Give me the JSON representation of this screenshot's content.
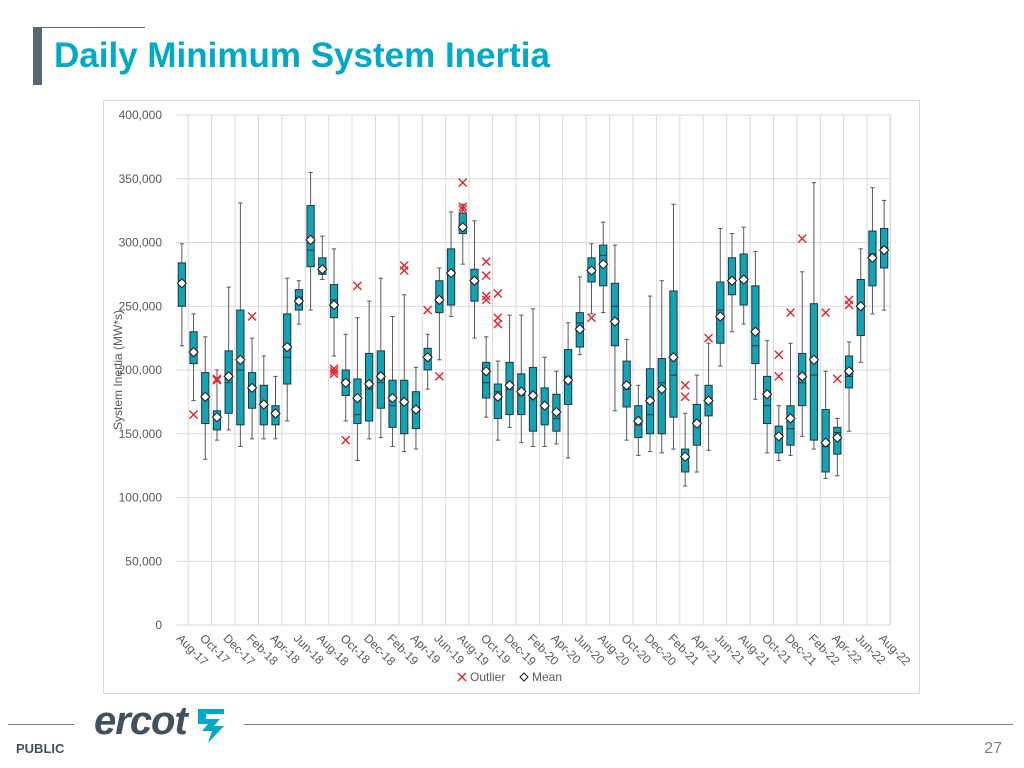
{
  "page": {
    "title": "Daily Minimum System Inertia",
    "classification": "PUBLIC",
    "page_number": "27",
    "logo_text": "ercot"
  },
  "colors": {
    "title": "#00a9c5",
    "box_fill": "#13a3b5",
    "box_stroke": "#1f3740",
    "outlier": "#e0262b",
    "grid": "#d9d9d9",
    "logo_mark": "#00a9c5"
  },
  "chart_data": {
    "type": "box",
    "title": "",
    "ylabel": "System Inertia (MW*s)",
    "xlabel": "",
    "ylim": [
      0,
      400000
    ],
    "yticks": [
      0,
      50000,
      100000,
      150000,
      200000,
      250000,
      300000,
      350000,
      400000
    ],
    "ytick_labels": [
      "0",
      "50,000",
      "100,000",
      "150,000",
      "200,000",
      "250,000",
      "300,000",
      "350,000",
      "400,000"
    ],
    "grid": true,
    "legend": {
      "position": "bottom",
      "entries": [
        "Outlier",
        "Mean"
      ]
    },
    "x_tick_labels": [
      "Aug-17",
      "Oct-17",
      "Dec-17",
      "Feb-18",
      "Apr-18",
      "Jun-18",
      "Aug-18",
      "Oct-18",
      "Dec-18",
      "Feb-19",
      "Apr-19",
      "Jun-19",
      "Aug-19",
      "Oct-19",
      "Dec-19",
      "Feb-20",
      "Apr-20",
      "Jun-20",
      "Aug-20",
      "Oct-20",
      "Dec-20",
      "Feb-21",
      "Apr-21",
      "Jun-21",
      "Aug-21",
      "Oct-21",
      "Dec-21",
      "Feb-22",
      "Apr-22",
      "Jun-22",
      "Aug-22"
    ],
    "series": [
      {
        "month": "Aug-17",
        "min": 219000,
        "q1": 250000,
        "median": 268000,
        "q3": 284000,
        "max": 299000,
        "mean": 268000,
        "outliers": []
      },
      {
        "month": "Sep-17",
        "min": 176000,
        "q1": 205000,
        "median": 215000,
        "q3": 230000,
        "max": 244000,
        "mean": 214000,
        "outliers": [
          165000
        ]
      },
      {
        "month": "Oct-17",
        "min": 130000,
        "q1": 158000,
        "median": 178000,
        "q3": 198000,
        "max": 226000,
        "mean": 179000,
        "outliers": []
      },
      {
        "month": "Nov-17",
        "min": 145000,
        "q1": 153000,
        "median": 162000,
        "q3": 168000,
        "max": 200000,
        "mean": 163000,
        "outliers": [
          192000,
          193000
        ]
      },
      {
        "month": "Dec-17",
        "min": 153000,
        "q1": 166000,
        "median": 190000,
        "q3": 215000,
        "max": 265000,
        "mean": 195000,
        "outliers": []
      },
      {
        "month": "Jan-18",
        "min": 140000,
        "q1": 157000,
        "median": 200000,
        "q3": 247000,
        "max": 331000,
        "mean": 208000,
        "outliers": []
      },
      {
        "month": "Feb-18",
        "min": 146000,
        "q1": 170000,
        "median": 186000,
        "q3": 198000,
        "max": 225000,
        "mean": 186000,
        "outliers": [
          242000
        ]
      },
      {
        "month": "Mar-18",
        "min": 146000,
        "q1": 157000,
        "median": 175000,
        "q3": 188000,
        "max": 211000,
        "mean": 173000,
        "outliers": []
      },
      {
        "month": "Apr-18",
        "min": 146000,
        "q1": 157000,
        "median": 165000,
        "q3": 172000,
        "max": 195000,
        "mean": 166000,
        "outliers": []
      },
      {
        "month": "May-18",
        "min": 160000,
        "q1": 189000,
        "median": 210000,
        "q3": 244000,
        "max": 272000,
        "mean": 218000,
        "outliers": []
      },
      {
        "month": "Jun-18",
        "min": 236000,
        "q1": 247000,
        "median": 257000,
        "q3": 263000,
        "max": 270000,
        "mean": 254000,
        "outliers": []
      },
      {
        "month": "Jul-18",
        "min": 247000,
        "q1": 281000,
        "median": 294000,
        "q3": 329000,
        "max": 355000,
        "mean": 302000,
        "outliers": []
      },
      {
        "month": "Aug-18",
        "min": 271000,
        "q1": 275000,
        "median": 279000,
        "q3": 288000,
        "max": 305000,
        "mean": 279000,
        "outliers": []
      },
      {
        "month": "Sep-18",
        "min": 211000,
        "q1": 241000,
        "median": 255000,
        "q3": 267000,
        "max": 295000,
        "mean": 251000,
        "outliers": [
          197000,
          199000,
          201000
        ]
      },
      {
        "month": "Oct-18",
        "min": 160000,
        "q1": 180000,
        "median": 192000,
        "q3": 200000,
        "max": 228000,
        "mean": 190000,
        "outliers": [
          145000
        ]
      },
      {
        "month": "Nov-18",
        "min": 129000,
        "q1": 158000,
        "median": 165000,
        "q3": 193000,
        "max": 241000,
        "mean": 178000,
        "outliers": [
          266000
        ]
      },
      {
        "month": "Dec-18",
        "min": 146000,
        "q1": 160000,
        "median": 185000,
        "q3": 213000,
        "max": 254000,
        "mean": 189000,
        "outliers": []
      },
      {
        "month": "Jan-19",
        "min": 147000,
        "q1": 170000,
        "median": 190000,
        "q3": 215000,
        "max": 272000,
        "mean": 195000,
        "outliers": []
      },
      {
        "month": "Feb-19",
        "min": 140000,
        "q1": 155000,
        "median": 172000,
        "q3": 192000,
        "max": 242000,
        "mean": 178000,
        "outliers": []
      },
      {
        "month": "Mar-19",
        "min": 136000,
        "q1": 150000,
        "median": 176000,
        "q3": 192000,
        "max": 259000,
        "mean": 175000,
        "outliers": [
          278000,
          282000
        ]
      },
      {
        "month": "Apr-19",
        "min": 138000,
        "q1": 154000,
        "median": 170000,
        "q3": 183000,
        "max": 202000,
        "mean": 169000,
        "outliers": []
      },
      {
        "month": "May-19",
        "min": 185000,
        "q1": 200000,
        "median": 209000,
        "q3": 217000,
        "max": 228000,
        "mean": 210000,
        "outliers": [
          247000
        ]
      },
      {
        "month": "Jun-19",
        "min": 208000,
        "q1": 245000,
        "median": 257000,
        "q3": 270000,
        "max": 280000,
        "mean": 255000,
        "outliers": [
          195000
        ]
      },
      {
        "month": "Jul-19",
        "min": 242000,
        "q1": 251000,
        "median": 275000,
        "q3": 295000,
        "max": 324000,
        "mean": 276000,
        "outliers": []
      },
      {
        "month": "Aug-19",
        "min": 283000,
        "q1": 307000,
        "median": 313000,
        "q3": 323000,
        "max": 330000,
        "mean": 312000,
        "outliers": [
          326000,
          328000,
          347000
        ]
      },
      {
        "month": "Sep-19",
        "min": 225000,
        "q1": 254000,
        "median": 270000,
        "q3": 279000,
        "max": 317000,
        "mean": 270000,
        "outliers": []
      },
      {
        "month": "Oct-19",
        "min": 163000,
        "q1": 178000,
        "median": 190000,
        "q3": 206000,
        "max": 226000,
        "mean": 199000,
        "outliers": [
          255000,
          258000,
          274000,
          285000
        ]
      },
      {
        "month": "Nov-19",
        "min": 145000,
        "q1": 162000,
        "median": 183000,
        "q3": 189000,
        "max": 207000,
        "mean": 179000,
        "outliers": [
          236000,
          241000,
          260000
        ]
      },
      {
        "month": "Dec-19",
        "min": 155000,
        "q1": 165000,
        "median": 185000,
        "q3": 206000,
        "max": 243000,
        "mean": 188000,
        "outliers": []
      },
      {
        "month": "Jan-20",
        "min": 143000,
        "q1": 165000,
        "median": 180000,
        "q3": 197000,
        "max": 243000,
        "mean": 183000,
        "outliers": []
      },
      {
        "month": "Feb-20",
        "min": 140000,
        "q1": 152000,
        "median": 178000,
        "q3": 202000,
        "max": 248000,
        "mean": 180000,
        "outliers": []
      },
      {
        "month": "Mar-20",
        "min": 140000,
        "q1": 157000,
        "median": 173000,
        "q3": 186000,
        "max": 210000,
        "mean": 172000,
        "outliers": []
      },
      {
        "month": "Apr-20",
        "min": 142000,
        "q1": 152000,
        "median": 162000,
        "q3": 181000,
        "max": 199000,
        "mean": 167000,
        "outliers": []
      },
      {
        "month": "May-20",
        "min": 131000,
        "q1": 173000,
        "median": 195000,
        "q3": 216000,
        "max": 237000,
        "mean": 192000,
        "outliers": []
      },
      {
        "month": "Jun-20",
        "min": 212000,
        "q1": 218000,
        "median": 237000,
        "q3": 245000,
        "max": 273000,
        "mean": 232000,
        "outliers": []
      },
      {
        "month": "Jul-20",
        "min": 244000,
        "q1": 269000,
        "median": 279000,
        "q3": 288000,
        "max": 299000,
        "mean": 278000,
        "outliers": [
          241000
        ]
      },
      {
        "month": "Aug-20",
        "min": 245000,
        "q1": 266000,
        "median": 290000,
        "q3": 298000,
        "max": 316000,
        "mean": 283000,
        "outliers": []
      },
      {
        "month": "Sep-20",
        "min": 168000,
        "q1": 219000,
        "median": 250000,
        "q3": 268000,
        "max": 298000,
        "mean": 238000,
        "outliers": []
      },
      {
        "month": "Oct-20",
        "min": 145000,
        "q1": 171000,
        "median": 185000,
        "q3": 207000,
        "max": 224000,
        "mean": 188000,
        "outliers": []
      },
      {
        "month": "Nov-20",
        "min": 133000,
        "q1": 147000,
        "median": 157000,
        "q3": 172000,
        "max": 188000,
        "mean": 160000,
        "outliers": []
      },
      {
        "month": "Dec-20",
        "min": 136000,
        "q1": 150000,
        "median": 165000,
        "q3": 201000,
        "max": 258000,
        "mean": 176000,
        "outliers": []
      },
      {
        "month": "Jan-21",
        "min": 135000,
        "q1": 150000,
        "median": 190000,
        "q3": 209000,
        "max": 270000,
        "mean": 185000,
        "outliers": []
      },
      {
        "month": "Feb-21",
        "min": 138000,
        "q1": 163000,
        "median": 196000,
        "q3": 262000,
        "max": 330000,
        "mean": 210000,
        "outliers": []
      },
      {
        "month": "Mar-21",
        "min": 109000,
        "q1": 120000,
        "median": 132000,
        "q3": 138000,
        "max": 166000,
        "mean": 132000,
        "outliers": [
          179000,
          188000
        ]
      },
      {
        "month": "Apr-21",
        "min": 120000,
        "q1": 141000,
        "median": 160000,
        "q3": 173000,
        "max": 196000,
        "mean": 158000,
        "outliers": []
      },
      {
        "month": "May-21",
        "min": 137000,
        "q1": 164000,
        "median": 178000,
        "q3": 188000,
        "max": 221000,
        "mean": 176000,
        "outliers": [
          225000
        ]
      },
      {
        "month": "Jun-21",
        "min": 203000,
        "q1": 221000,
        "median": 247000,
        "q3": 269000,
        "max": 311000,
        "mean": 242000,
        "outliers": []
      },
      {
        "month": "Jul-21",
        "min": 230000,
        "q1": 259000,
        "median": 271000,
        "q3": 288000,
        "max": 307000,
        "mean": 270000,
        "outliers": []
      },
      {
        "month": "Aug-21",
        "min": 236000,
        "q1": 251000,
        "median": 270000,
        "q3": 291000,
        "max": 312000,
        "mean": 271000,
        "outliers": []
      },
      {
        "month": "Sep-21",
        "min": 177000,
        "q1": 205000,
        "median": 219000,
        "q3": 266000,
        "max": 293000,
        "mean": 230000,
        "outliers": []
      },
      {
        "month": "Oct-21",
        "min": 135000,
        "q1": 158000,
        "median": 172000,
        "q3": 195000,
        "max": 223000,
        "mean": 181000,
        "outliers": []
      },
      {
        "month": "Nov-21",
        "min": 129000,
        "q1": 135000,
        "median": 148000,
        "q3": 156000,
        "max": 172000,
        "mean": 148000,
        "outliers": [
          195000,
          212000
        ]
      },
      {
        "month": "Dec-21",
        "min": 133000,
        "q1": 141000,
        "median": 154000,
        "q3": 172000,
        "max": 221000,
        "mean": 162000,
        "outliers": [
          245000
        ]
      },
      {
        "month": "Jan-22",
        "min": 148000,
        "q1": 172000,
        "median": 190000,
        "q3": 213000,
        "max": 277000,
        "mean": 195000,
        "outliers": [
          303000
        ]
      },
      {
        "month": "Feb-22",
        "min": 138000,
        "q1": 145000,
        "median": 196000,
        "q3": 252000,
        "max": 347000,
        "mean": 208000,
        "outliers": []
      },
      {
        "month": "Mar-22",
        "min": 115000,
        "q1": 120000,
        "median": 140000,
        "q3": 169000,
        "max": 199000,
        "mean": 143000,
        "outliers": [
          245000
        ]
      },
      {
        "month": "Apr-22",
        "min": 117000,
        "q1": 134000,
        "median": 151000,
        "q3": 155000,
        "max": 162000,
        "mean": 147000,
        "outliers": [
          193000
        ]
      },
      {
        "month": "May-22",
        "min": 152000,
        "q1": 186000,
        "median": 195000,
        "q3": 211000,
        "max": 222000,
        "mean": 199000,
        "outliers": [
          251000,
          255000
        ]
      },
      {
        "month": "Jun-22",
        "min": 206000,
        "q1": 227000,
        "median": 250000,
        "q3": 271000,
        "max": 295000,
        "mean": 250000,
        "outliers": []
      },
      {
        "month": "Jul-22",
        "min": 244000,
        "q1": 266000,
        "median": 291000,
        "q3": 309000,
        "max": 343000,
        "mean": 288000,
        "outliers": []
      },
      {
        "month": "Aug-22",
        "min": 247000,
        "q1": 280000,
        "median": 296000,
        "q3": 311000,
        "max": 333000,
        "mean": 294000,
        "outliers": []
      }
    ]
  }
}
